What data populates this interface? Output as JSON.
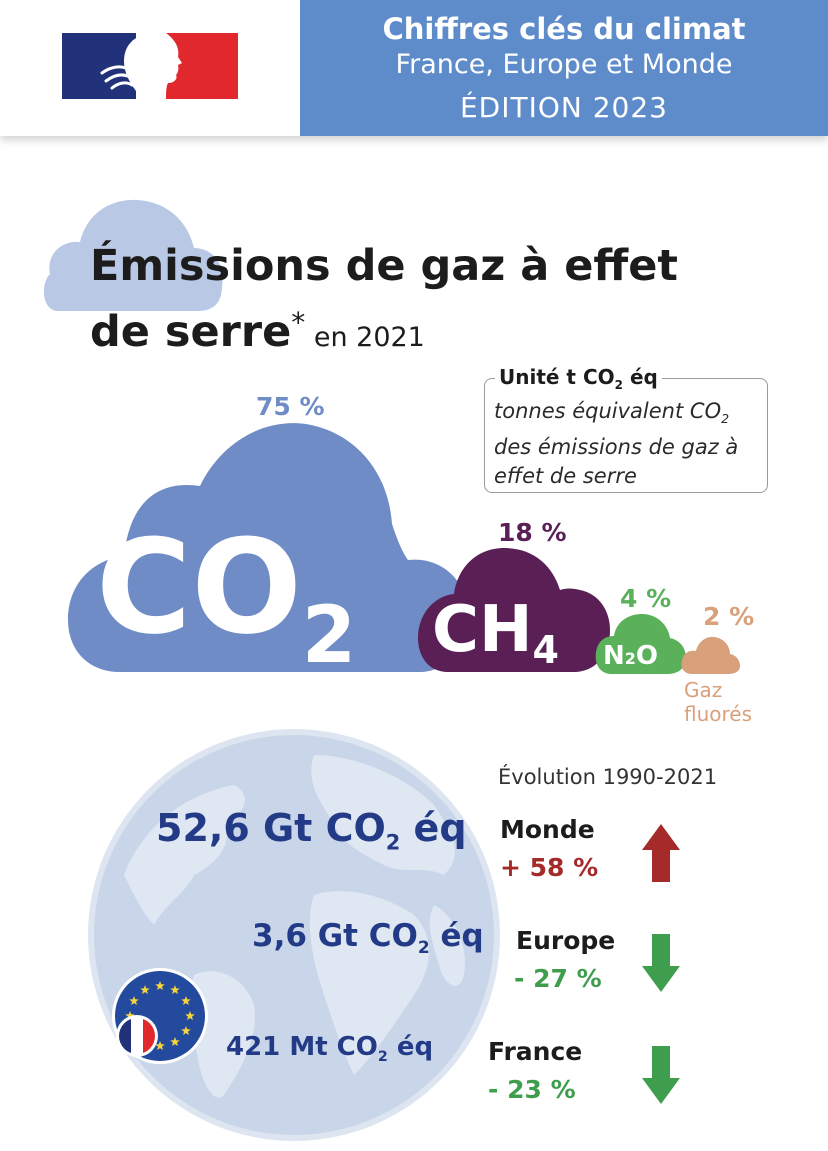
{
  "header": {
    "title": "Chiffres clés du climat",
    "subtitle": "France, Europe et Monde",
    "edition": "ÉDITION 2023"
  },
  "section": {
    "title_line1": "Émissions de gaz à effet",
    "title_line2": "de serre",
    "asterisk": "*",
    "year_suffix": " en 2021"
  },
  "unit_box": {
    "heading_prefix": "Unité t CO",
    "heading_sub": "2",
    "heading_suffix": " éq",
    "desc_line1_prefix": "tonnes équivalent CO",
    "desc_line1_sub": "2",
    "desc_rest": "des émissions de gaz à effet de serre"
  },
  "gases": [
    {
      "name": "CO",
      "sub": "2",
      "share_label": "75 %",
      "share": 75,
      "color": "#6f8cc7"
    },
    {
      "name": "CH",
      "sub": "4",
      "share_label": "18 %",
      "share": 18,
      "color": "#5a1f55"
    },
    {
      "name": "N",
      "sub": "2",
      "name_suffix": "O",
      "share_label": "4 %",
      "share": 4,
      "color": "#5ab15a"
    },
    {
      "name": "",
      "share_label": "2 %",
      "share": 2,
      "color": "#d9a07c",
      "caption_line1": "Gaz",
      "caption_line2": "fluorés"
    }
  ],
  "emissions": {
    "world": {
      "value": "52,6 Gt CO",
      "sub": "2",
      "suffix": " éq"
    },
    "europe": {
      "value": "3,6 Gt CO",
      "sub": "2",
      "suffix": " éq"
    },
    "france": {
      "value": "421 Mt CO",
      "sub": "2",
      "suffix": " éq"
    }
  },
  "evolution": {
    "title": "Évolution 1990-2021",
    "items": [
      {
        "region": "Monde",
        "change": "+ 58 %",
        "direction": "up",
        "color": "#a52a2a"
      },
      {
        "region": "Europe",
        "change": "- 27 %",
        "direction": "down",
        "color": "#3f9e4d"
      },
      {
        "region": "France",
        "change": "- 23 %",
        "direction": "down",
        "color": "#3f9e4d"
      }
    ]
  },
  "icons": [
    "marianne-logo-icon",
    "globe-icon",
    "eu-flag-icon",
    "france-flag-icon",
    "arrow-up-icon",
    "arrow-down-icon"
  ]
}
